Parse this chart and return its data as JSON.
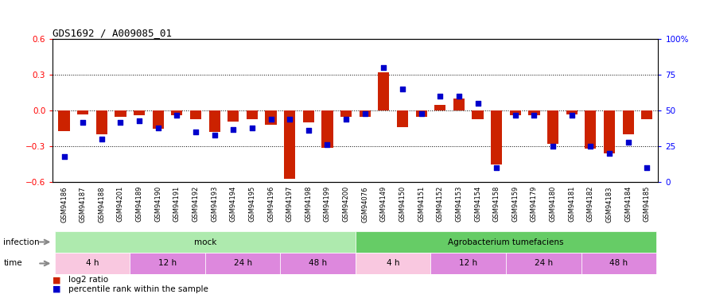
{
  "title": "GDS1692 / A009085_01",
  "samples": [
    "GSM94186",
    "GSM94187",
    "GSM94188",
    "GSM94201",
    "GSM94189",
    "GSM94190",
    "GSM94191",
    "GSM94192",
    "GSM94193",
    "GSM94194",
    "GSM94195",
    "GSM94196",
    "GSM94197",
    "GSM94198",
    "GSM94199",
    "GSM94200",
    "GSM94076",
    "GSM94149",
    "GSM94150",
    "GSM94151",
    "GSM94152",
    "GSM94153",
    "GSM94154",
    "GSM94158",
    "GSM94159",
    "GSM94179",
    "GSM94180",
    "GSM94181",
    "GSM94182",
    "GSM94183",
    "GSM94184",
    "GSM94185"
  ],
  "log2_ratio": [
    -0.17,
    -0.03,
    -0.2,
    -0.05,
    -0.04,
    -0.15,
    -0.04,
    -0.07,
    -0.18,
    -0.09,
    -0.07,
    -0.12,
    -0.57,
    -0.1,
    -0.31,
    -0.05,
    -0.05,
    0.32,
    -0.14,
    -0.05,
    0.05,
    0.1,
    -0.07,
    -0.45,
    -0.04,
    -0.04,
    -0.28,
    -0.03,
    -0.32,
    -0.36,
    -0.2,
    -0.07
  ],
  "percentile": [
    18,
    42,
    30,
    42,
    43,
    38,
    47,
    35,
    33,
    37,
    38,
    44,
    44,
    36,
    26,
    44,
    48,
    80,
    65,
    48,
    60,
    60,
    55,
    10,
    47,
    47,
    25,
    47,
    25,
    20,
    28,
    10
  ],
  "infection_groups": [
    {
      "label": "mock",
      "start": 0,
      "end": 16,
      "color": "#aeeaae"
    },
    {
      "label": "Agrobacterium tumefaciens",
      "start": 16,
      "end": 32,
      "color": "#66cc66"
    }
  ],
  "time_groups": [
    {
      "label": "4 h",
      "start": 0,
      "end": 4,
      "color": "#f9c8e0"
    },
    {
      "label": "12 h",
      "start": 4,
      "end": 8,
      "color": "#dd88dd"
    },
    {
      "label": "24 h",
      "start": 8,
      "end": 12,
      "color": "#dd88dd"
    },
    {
      "label": "48 h",
      "start": 12,
      "end": 16,
      "color": "#dd88dd"
    },
    {
      "label": "4 h",
      "start": 16,
      "end": 20,
      "color": "#f9c8e0"
    },
    {
      "label": "12 h",
      "start": 20,
      "end": 24,
      "color": "#dd88dd"
    },
    {
      "label": "24 h",
      "start": 24,
      "end": 28,
      "color": "#dd88dd"
    },
    {
      "label": "48 h",
      "start": 28,
      "end": 32,
      "color": "#dd88dd"
    }
  ],
  "ylim": [
    -0.6,
    0.6
  ],
  "yticks_left": [
    -0.6,
    -0.3,
    0.0,
    0.3,
    0.6
  ],
  "yticks_right": [
    0,
    25,
    50,
    75,
    100
  ],
  "bar_color": "#cc2200",
  "dot_color": "#0000cc",
  "xtick_bg": "#cccccc",
  "plot_bg": "#ffffff"
}
